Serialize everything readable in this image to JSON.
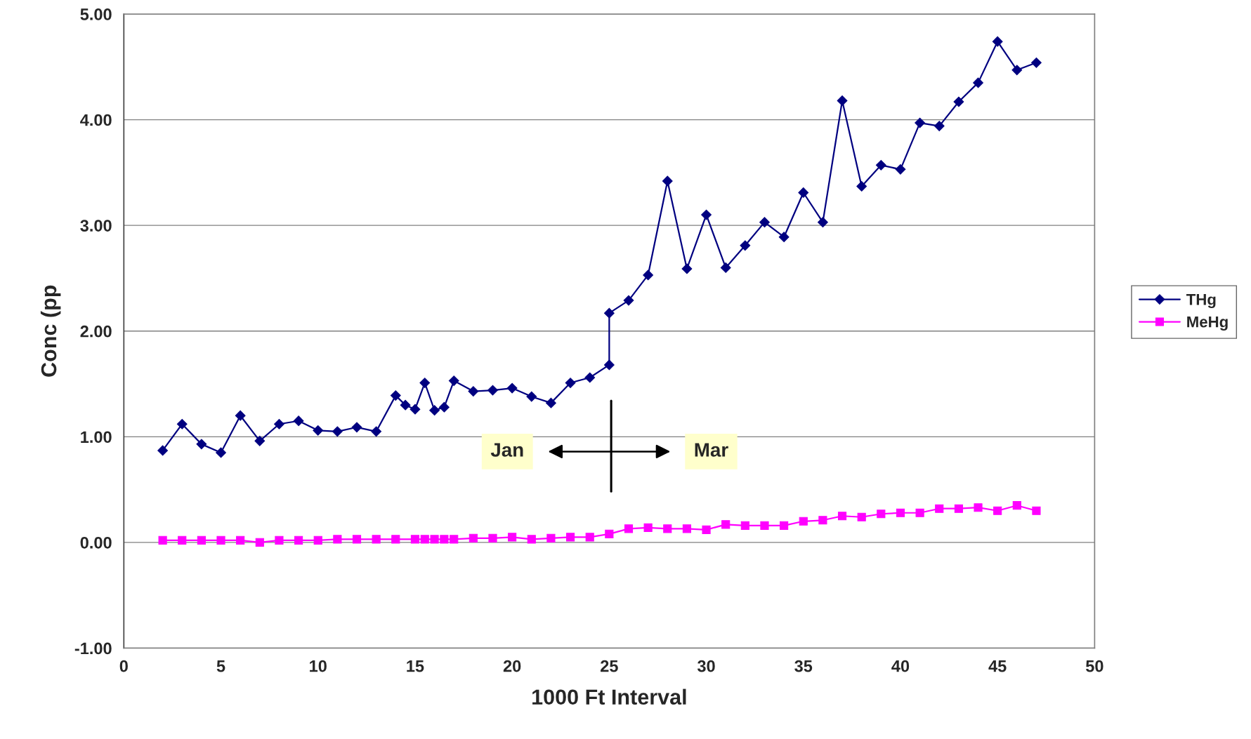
{
  "chart_data": {
    "type": "line",
    "xlabel": "1000 Ft Interval",
    "ylabel": "Conc (pp",
    "xlim": [
      0,
      50
    ],
    "xticks": [
      0,
      5,
      10,
      15,
      20,
      25,
      30,
      35,
      40,
      45,
      50
    ],
    "ylim": [
      -1,
      5
    ],
    "yticks": [
      {
        "value": -1,
        "label": "-1.00"
      },
      {
        "value": 0,
        "label": "0.00"
      },
      {
        "value": 1,
        "label": "1.00"
      },
      {
        "value": 2,
        "label": "2.00"
      },
      {
        "value": 3,
        "label": "3.00"
      },
      {
        "value": 4,
        "label": "4.00"
      },
      {
        "value": 5,
        "label": "5.00"
      }
    ],
    "grid": "y",
    "legend": "right",
    "series": [
      {
        "name": "THg",
        "color": "#000080",
        "marker": "diamond",
        "x": [
          2,
          3,
          4,
          5,
          6,
          7,
          8,
          9,
          10,
          11,
          12,
          13,
          14,
          14.5,
          15,
          15.5,
          16,
          16.5,
          17,
          18,
          19,
          20,
          21,
          22,
          23,
          24,
          25,
          25,
          26,
          27,
          28,
          29,
          30,
          31,
          32,
          33,
          34,
          35,
          36,
          37,
          38,
          39,
          40,
          41,
          42,
          43,
          44,
          45,
          46,
          47
        ],
        "values": [
          0.87,
          1.12,
          0.93,
          0.85,
          1.2,
          0.96,
          1.12,
          1.15,
          1.06,
          1.05,
          1.09,
          1.05,
          1.39,
          1.3,
          1.26,
          1.51,
          1.25,
          1.28,
          1.53,
          1.43,
          1.44,
          1.46,
          1.38,
          1.32,
          1.51,
          1.56,
          1.68,
          2.17,
          2.29,
          2.53,
          3.42,
          2.59,
          3.1,
          2.6,
          2.81,
          3.03,
          2.89,
          3.31,
          3.03,
          4.18,
          3.37,
          3.57,
          3.53,
          3.97,
          3.94,
          4.17,
          4.35,
          4.74,
          4.47,
          4.54
        ]
      },
      {
        "name": "MeHg",
        "color": "#ff00ff",
        "marker": "square",
        "x": [
          2,
          3,
          4,
          5,
          6,
          7,
          8,
          9,
          10,
          11,
          12,
          13,
          14,
          15,
          15.5,
          16,
          16.5,
          17,
          18,
          19,
          20,
          21,
          22,
          23,
          24,
          25,
          26,
          27,
          28,
          29,
          30,
          31,
          32,
          33,
          34,
          35,
          36,
          37,
          38,
          39,
          40,
          41,
          42,
          43,
          44,
          45,
          46,
          47
        ],
        "values": [
          0.02,
          0.02,
          0.02,
          0.02,
          0.02,
          0.0,
          0.02,
          0.02,
          0.02,
          0.03,
          0.03,
          0.03,
          0.03,
          0.03,
          0.03,
          0.03,
          0.03,
          0.03,
          0.04,
          0.04,
          0.05,
          0.03,
          0.04,
          0.05,
          0.05,
          0.08,
          0.13,
          0.14,
          0.13,
          0.13,
          0.12,
          0.17,
          0.16,
          0.16,
          0.16,
          0.2,
          0.21,
          0.25,
          0.24,
          0.27,
          0.28,
          0.28,
          0.32,
          0.32,
          0.33,
          0.3,
          0.35,
          0.3
        ]
      }
    ],
    "annotations": [
      "Jan",
      "Mar"
    ]
  }
}
